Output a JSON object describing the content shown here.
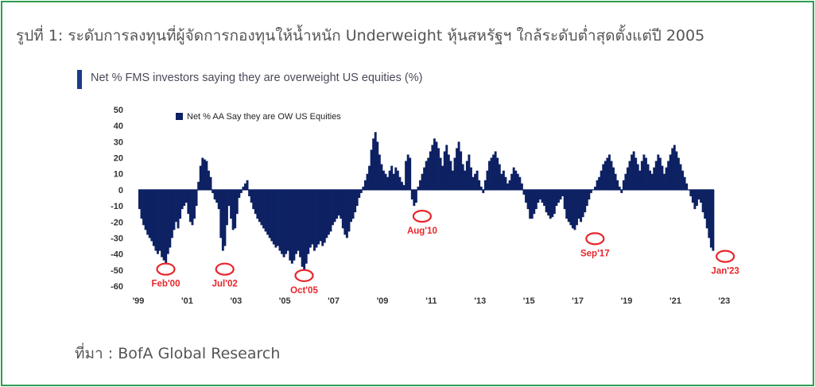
{
  "caption": "รูปที่ 1: ระดับการลงทุนที่ผู้จัดการกองทุนให้น้ำหนัก Underweight หุ้นสหรัฐฯ ใกล้ระดับต่ำสุดตั้งแต่ปี 2005",
  "source": "ที่มา : BofA Global Research",
  "colors": {
    "frame": "#2e9e4f",
    "bars": "#0d2163",
    "annotation": "#e8252b",
    "title_marker": "#1b3a8c"
  },
  "chart_data": {
    "type": "bar",
    "title": "Net % FMS investors saying they are overweight US equities (%)",
    "legend": "top-left",
    "series": [
      {
        "name": "Net % AA Say they are OW US Equities",
        "x_start": "Jan 1999",
        "frequency": "monthly",
        "values": [
          -12,
          -18,
          -22,
          -25,
          -28,
          -30,
          -32,
          -35,
          -38,
          -40,
          -38,
          -42,
          -44,
          -46,
          -40,
          -36,
          -30,
          -25,
          -20,
          -24,
          -18,
          -12,
          -10,
          -8,
          -15,
          -20,
          -22,
          -18,
          -10,
          5,
          15,
          20,
          19,
          18,
          12,
          8,
          -2,
          -6,
          -8,
          -12,
          -30,
          -38,
          -35,
          -22,
          -10,
          -18,
          -25,
          -24,
          -15,
          -5,
          -2,
          2,
          4,
          6,
          -4,
          -8,
          -12,
          -15,
          -18,
          -20,
          -22,
          -24,
          -26,
          -28,
          -30,
          -32,
          -34,
          -36,
          -35,
          -38,
          -40,
          -42,
          -40,
          -38,
          -44,
          -46,
          -44,
          -40,
          -38,
          -42,
          -48,
          -50,
          -46,
          -40,
          -36,
          -34,
          -38,
          -36,
          -34,
          -32,
          -35,
          -33,
          -30,
          -28,
          -26,
          -22,
          -20,
          -18,
          -16,
          -18,
          -24,
          -28,
          -30,
          -26,
          -20,
          -18,
          -14,
          -10,
          -5,
          -2,
          2,
          6,
          10,
          15,
          25,
          32,
          36,
          30,
          22,
          16,
          12,
          10,
          8,
          12,
          15,
          10,
          14,
          12,
          8,
          5,
          3,
          18,
          22,
          20,
          -6,
          -10,
          -8,
          2,
          6,
          10,
          14,
          18,
          20,
          24,
          28,
          32,
          30,
          26,
          20,
          15,
          24,
          28,
          22,
          18,
          12,
          20,
          26,
          30,
          24,
          16,
          12,
          18,
          22,
          14,
          8,
          10,
          12,
          6,
          2,
          -2,
          6,
          12,
          18,
          20,
          22,
          24,
          20,
          16,
          10,
          12,
          8,
          4,
          6,
          10,
          14,
          12,
          10,
          8,
          4,
          -3,
          -8,
          -12,
          -18,
          -18,
          -15,
          -12,
          -8,
          -6,
          -8,
          -10,
          -14,
          -16,
          -18,
          -17,
          -15,
          -10,
          -8,
          -6,
          -4,
          -12,
          -18,
          -20,
          -22,
          -24,
          -25,
          -22,
          -18,
          -20,
          -17,
          -14,
          -10,
          -6,
          -2,
          0,
          2,
          6,
          8,
          12,
          16,
          18,
          20,
          22,
          18,
          14,
          10,
          6,
          2,
          -2,
          6,
          10,
          14,
          18,
          22,
          24,
          20,
          16,
          12,
          18,
          22,
          20,
          16,
          12,
          10,
          14,
          18,
          22,
          20,
          15,
          10,
          14,
          18,
          22,
          26,
          28,
          24,
          20,
          16,
          12,
          8,
          4,
          0,
          -4,
          -8,
          -12,
          -10,
          -6,
          -8,
          -14,
          -18,
          -24,
          -30,
          -36,
          -38
        ]
      }
    ],
    "xticks": [
      "'99",
      "'01",
      "'03",
      "'05",
      "'07",
      "'09",
      "'11",
      "'13",
      "'15",
      "'17",
      "'19",
      "'21",
      "'23"
    ],
    "yticks": [
      50,
      40,
      30,
      20,
      10,
      0,
      -10,
      -20,
      -30,
      -40,
      -50,
      -60
    ],
    "ylim": [
      -60,
      50
    ],
    "grid": false,
    "annotations": [
      {
        "label": "Feb'00",
        "x": "Feb 2000",
        "y": -46
      },
      {
        "label": "Jul'02",
        "x": "Jul 2002",
        "y": -46
      },
      {
        "label": "Oct'05",
        "x": "Oct 2005",
        "y": -50
      },
      {
        "label": "Aug'10",
        "x": "Aug 2010",
        "y": -13
      },
      {
        "label": "Sep'17",
        "x": "Sep 2017",
        "y": -27
      },
      {
        "label": "Jan'23",
        "x": "Jan 2023",
        "y": -38
      }
    ]
  }
}
